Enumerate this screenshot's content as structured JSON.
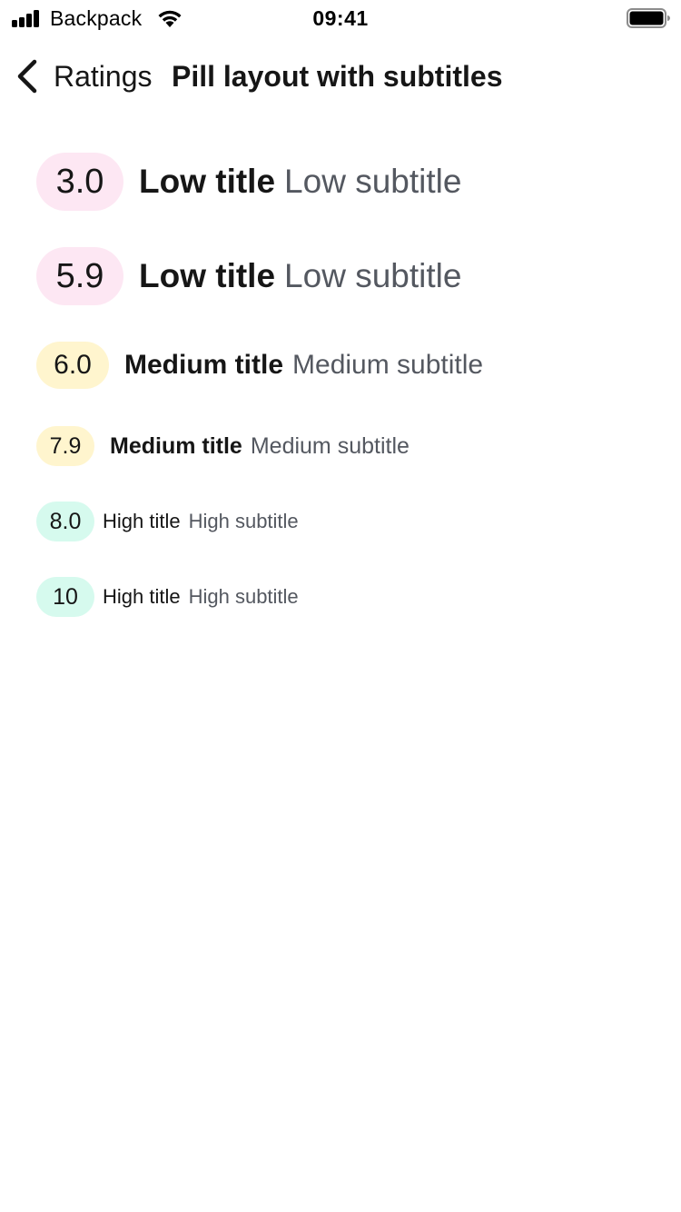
{
  "status_bar": {
    "carrier": "Backpack",
    "time": "09:41",
    "icons": [
      "cellular-signal-icon",
      "wifi-icon",
      "battery-icon"
    ]
  },
  "nav": {
    "back_label": "Ratings",
    "title": "Pill layout with subtitles",
    "back_icon": "chevron-left-icon"
  },
  "colors": {
    "low": "#FDE7F3",
    "medium": "#FFF5CE",
    "high": "#D6FAEE",
    "text_primary": "#161616",
    "text_secondary": "#545860"
  },
  "ratings": [
    {
      "value": "3.0",
      "title": "Low title",
      "subtitle": "Low subtitle",
      "level": "low",
      "size": "large"
    },
    {
      "value": "5.9",
      "title": "Low title",
      "subtitle": "Low subtitle",
      "level": "low",
      "size": "large"
    },
    {
      "value": "6.0",
      "title": "Medium title",
      "subtitle": "Medium subtitle",
      "level": "medium",
      "size": "medium"
    },
    {
      "value": "7.9",
      "title": "Medium title",
      "subtitle": "Medium subtitle",
      "level": "medium",
      "size": "small"
    },
    {
      "value": "8.0",
      "title": "High title",
      "subtitle": "High subtitle",
      "level": "high",
      "size": "xsmall"
    },
    {
      "value": "10",
      "title": "High title",
      "subtitle": "High subtitle",
      "level": "high",
      "size": "xsmall"
    }
  ]
}
